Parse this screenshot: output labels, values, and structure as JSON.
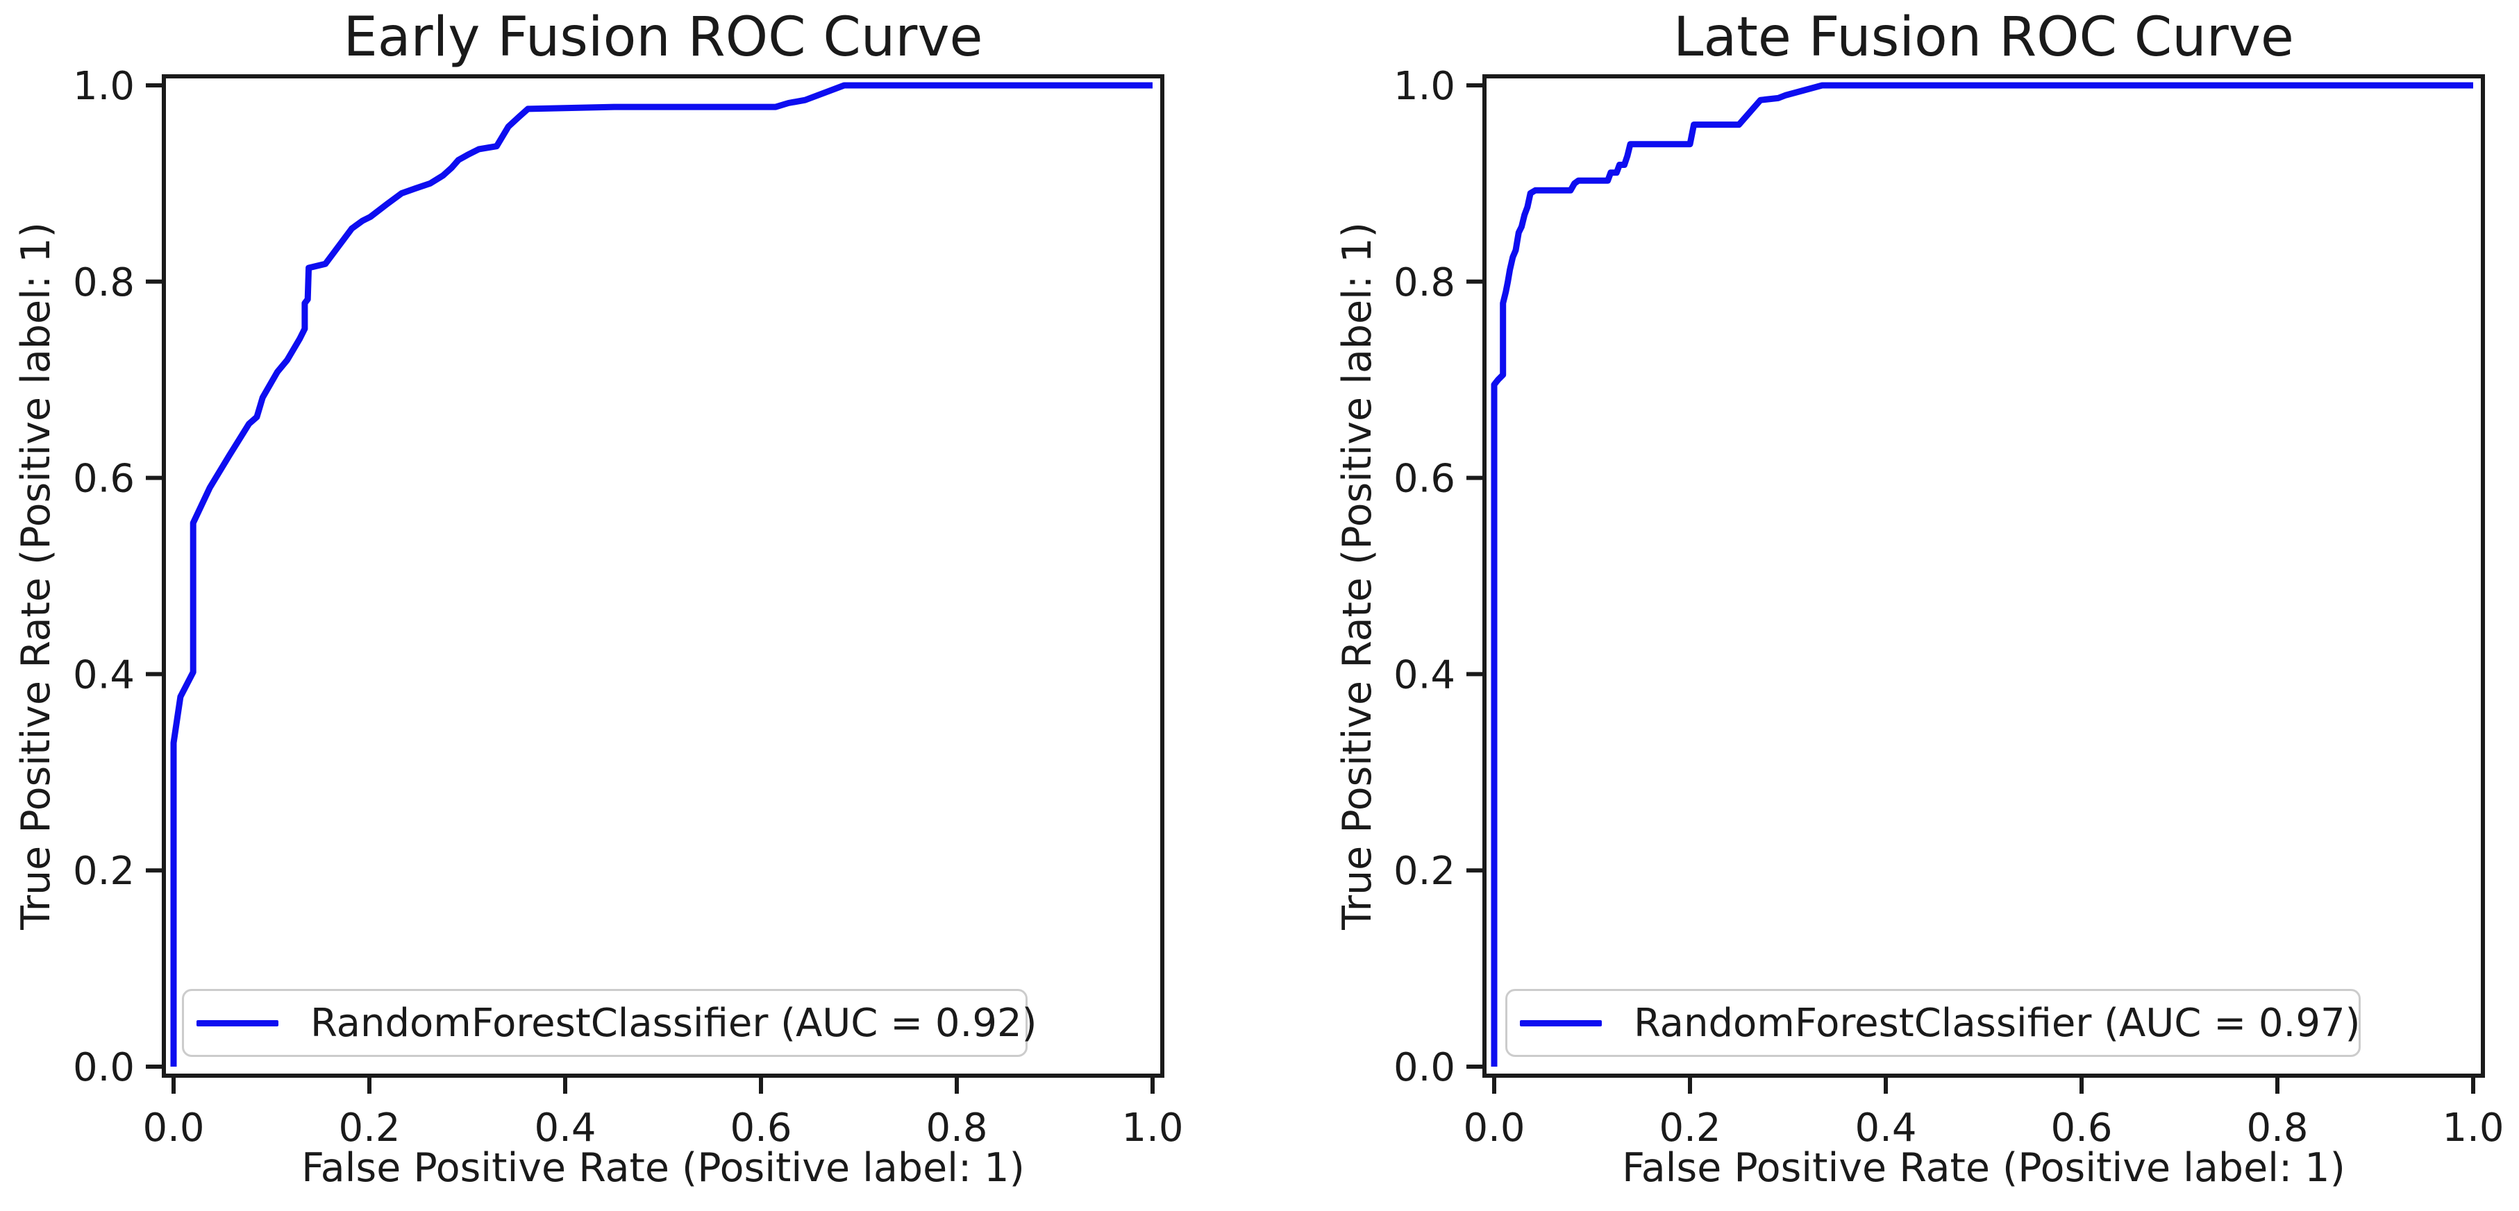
{
  "figure": {
    "background": "#ffffff",
    "text_color": "#1a1a1a",
    "spine_color": "#1a1a1a",
    "legend_border_color": "#cccccc"
  },
  "chart_data": [
    {
      "type": "line",
      "title": "Early Fusion ROC Curve",
      "xlabel": "False Positive Rate (Positive label: 1)",
      "ylabel": "True Positive Rate (Positive label: 1)",
      "legend_label": "RandomForestClassifier (AUC = 0.92)",
      "auc": 0.92,
      "legend_position": "lower-left",
      "grid": false,
      "xlim": [
        0.0,
        1.0
      ],
      "ylim": [
        0.0,
        1.0
      ],
      "xticks": [
        "0.0",
        "0.2",
        "0.4",
        "0.6",
        "0.8",
        "1.0"
      ],
      "yticks": [
        "0.0",
        "0.2",
        "0.4",
        "0.6",
        "0.8",
        "1.0"
      ],
      "series": [
        {
          "name": "RandomForestClassifier",
          "color": "#0d0df0",
          "points": [
            [
              0.0,
              0.0
            ],
            [
              0.0,
              0.33
            ],
            [
              0.007,
              0.377
            ],
            [
              0.02,
              0.402
            ],
            [
              0.02,
              0.554
            ],
            [
              0.037,
              0.59
            ],
            [
              0.057,
              0.623
            ],
            [
              0.077,
              0.655
            ],
            [
              0.085,
              0.662
            ],
            [
              0.091,
              0.682
            ],
            [
              0.106,
              0.708
            ],
            [
              0.116,
              0.72
            ],
            [
              0.129,
              0.742
            ],
            [
              0.134,
              0.752
            ],
            [
              0.134,
              0.778
            ],
            [
              0.137,
              0.782
            ],
            [
              0.138,
              0.814
            ],
            [
              0.155,
              0.818
            ],
            [
              0.167,
              0.834
            ],
            [
              0.182,
              0.854
            ],
            [
              0.193,
              0.862
            ],
            [
              0.201,
              0.866
            ],
            [
              0.218,
              0.879
            ],
            [
              0.233,
              0.89
            ],
            [
              0.247,
              0.895
            ],
            [
              0.262,
              0.9
            ],
            [
              0.275,
              0.908
            ],
            [
              0.284,
              0.916
            ],
            [
              0.291,
              0.924
            ],
            [
              0.3,
              0.929
            ],
            [
              0.312,
              0.935
            ],
            [
              0.33,
              0.938
            ],
            [
              0.342,
              0.958
            ],
            [
              0.353,
              0.968
            ],
            [
              0.362,
              0.976
            ],
            [
              0.45,
              0.978
            ],
            [
              0.615,
              0.978
            ],
            [
              0.628,
              0.982
            ],
            [
              0.645,
              0.985
            ],
            [
              0.685,
              1.0
            ],
            [
              1.0,
              1.0
            ]
          ]
        }
      ]
    },
    {
      "type": "line",
      "title": "Late Fusion ROC Curve",
      "xlabel": "False Positive Rate (Positive label: 1)",
      "ylabel": "True Positive Rate (Positive label: 1)",
      "legend_label": "RandomForestClassifier (AUC = 0.97)",
      "auc": 0.97,
      "legend_position": "lower-left",
      "grid": false,
      "xlim": [
        0.0,
        1.0
      ],
      "ylim": [
        0.0,
        1.0
      ],
      "xticks": [
        "0.0",
        "0.2",
        "0.4",
        "0.6",
        "0.8",
        "1.0"
      ],
      "yticks": [
        "0.0",
        "0.2",
        "0.4",
        "0.6",
        "0.8",
        "1.0"
      ],
      "series": [
        {
          "name": "RandomForestClassifier",
          "color": "#0d0df0",
          "points": [
            [
              0.0,
              0.0
            ],
            [
              0.0,
              0.695
            ],
            [
              0.004,
              0.7
            ],
            [
              0.009,
              0.705
            ],
            [
              0.009,
              0.778
            ],
            [
              0.012,
              0.79
            ],
            [
              0.014,
              0.8
            ],
            [
              0.016,
              0.812
            ],
            [
              0.019,
              0.825
            ],
            [
              0.022,
              0.832
            ],
            [
              0.025,
              0.85
            ],
            [
              0.028,
              0.856
            ],
            [
              0.031,
              0.868
            ],
            [
              0.034,
              0.876
            ],
            [
              0.037,
              0.89
            ],
            [
              0.042,
              0.893
            ],
            [
              0.078,
              0.893
            ],
            [
              0.082,
              0.9
            ],
            [
              0.086,
              0.903
            ],
            [
              0.116,
              0.903
            ],
            [
              0.119,
              0.911
            ],
            [
              0.125,
              0.911
            ],
            [
              0.128,
              0.919
            ],
            [
              0.133,
              0.919
            ],
            [
              0.136,
              0.928
            ],
            [
              0.139,
              0.94
            ],
            [
              0.2,
              0.94
            ],
            [
              0.204,
              0.96
            ],
            [
              0.25,
              0.96
            ],
            [
              0.272,
              0.985
            ],
            [
              0.29,
              0.987
            ],
            [
              0.298,
              0.99
            ],
            [
              0.335,
              1.0
            ],
            [
              1.0,
              1.0
            ]
          ]
        }
      ]
    }
  ]
}
